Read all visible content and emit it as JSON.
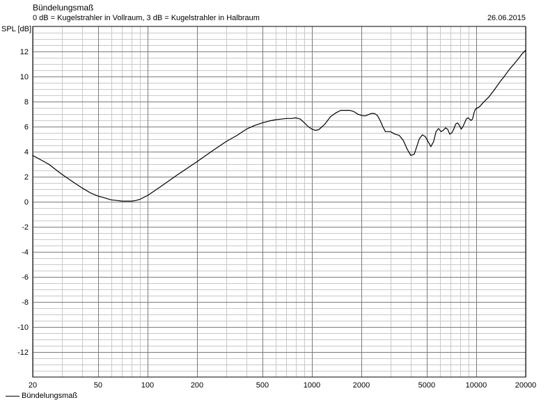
{
  "header": {
    "title": "Bündelungsmaß",
    "subtitle": "0 dB = Kugelstrahler in Vollraum, 3 dB = Kugelstrahler in Halbraum",
    "date": "26.06.2015",
    "y_axis_label": "SPL [dB]"
  },
  "legend": {
    "label": "Bündelungsmaß"
  },
  "chart_data": {
    "type": "line",
    "title": "Bündelungsmaß",
    "subtitle": "0 dB = Kugelstrahler in Vollraum, 3 dB = Kugelstrahler in Halbraum",
    "ylabel": "SPL [dB]",
    "xlabel": "",
    "x_scale": "log",
    "xlim": [
      20,
      20000
    ],
    "ylim": [
      -14,
      14
    ],
    "grid": true,
    "legend_position": "bottom-left",
    "x_ticks": [
      20,
      50,
      100,
      200,
      500,
      1000,
      2000,
      5000,
      10000,
      20000
    ],
    "y_ticks": [
      -12,
      -10,
      -8,
      -6,
      -4,
      -2,
      0,
      2,
      4,
      6,
      8,
      10,
      12
    ],
    "line_color": "#000000",
    "grid_color": "#c8c8c8",
    "series": [
      {
        "name": "Bündelungsmaß",
        "x": [
          20,
          25,
          30,
          35,
          40,
          45,
          50,
          55,
          60,
          65,
          70,
          75,
          80,
          85,
          90,
          100,
          120,
          150,
          200,
          250,
          300,
          350,
          400,
          450,
          500,
          550,
          600,
          650,
          700,
          750,
          800,
          850,
          900,
          950,
          1000,
          1050,
          1100,
          1200,
          1300,
          1400,
          1500,
          1600,
          1700,
          1800,
          1900,
          2000,
          2100,
          2200,
          2300,
          2400,
          2500,
          2600,
          2700,
          2800,
          3000,
          3200,
          3400,
          3600,
          3800,
          4000,
          4200,
          4500,
          4700,
          4900,
          5100,
          5300,
          5500,
          5700,
          5900,
          6100,
          6300,
          6500,
          6700,
          6900,
          7100,
          7300,
          7500,
          7700,
          7900,
          8100,
          8300,
          8500,
          8700,
          8900,
          9100,
          9300,
          9500,
          9700,
          9900,
          10500,
          11000,
          12000,
          13000,
          14000,
          15000,
          16000,
          17000,
          18000,
          19000,
          20000
        ],
        "values": [
          3.7,
          3.0,
          2.2,
          1.6,
          1.1,
          0.7,
          0.45,
          0.3,
          0.15,
          0.1,
          0.05,
          0.05,
          0.05,
          0.1,
          0.2,
          0.5,
          1.2,
          2.1,
          3.2,
          4.1,
          4.8,
          5.3,
          5.8,
          6.1,
          6.3,
          6.45,
          6.55,
          6.6,
          6.65,
          6.65,
          6.7,
          6.6,
          6.3,
          6.0,
          5.8,
          5.7,
          5.75,
          6.2,
          6.8,
          7.1,
          7.3,
          7.3,
          7.3,
          7.2,
          7.0,
          6.9,
          6.85,
          6.95,
          7.05,
          7.05,
          6.9,
          6.5,
          6.0,
          5.6,
          5.6,
          5.4,
          5.3,
          4.9,
          4.2,
          3.7,
          3.8,
          5.0,
          5.35,
          5.2,
          4.8,
          4.4,
          4.8,
          5.6,
          5.85,
          5.6,
          5.7,
          5.9,
          5.8,
          5.4,
          5.5,
          5.8,
          6.2,
          6.3,
          6.1,
          5.8,
          6.0,
          6.3,
          6.6,
          6.7,
          6.6,
          6.5,
          6.6,
          7.1,
          7.4,
          7.6,
          7.9,
          8.4,
          9.0,
          9.6,
          10.1,
          10.6,
          11.0,
          11.4,
          11.8,
          12.1
        ]
      }
    ]
  }
}
